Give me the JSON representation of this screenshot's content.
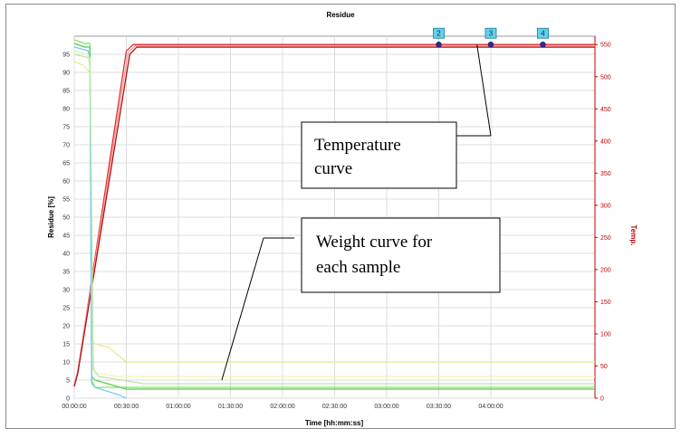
{
  "chart_data": {
    "type": "line",
    "title": "Residue",
    "xlabel": "Time [hh:mm:ss]",
    "ylabel": "Residue [%]",
    "y2label": "Temp.",
    "x_unit": "minutes",
    "xlim": [
      0,
      300
    ],
    "ylim": [
      0,
      100
    ],
    "y2lim": [
      0,
      563
    ],
    "x_ticks": [
      {
        "v": 0,
        "label": "00:00:00"
      },
      {
        "v": 30,
        "label": "00:30:00"
      },
      {
        "v": 60,
        "label": "01:00:00"
      },
      {
        "v": 90,
        "label": "01:30:00"
      },
      {
        "v": 120,
        "label": "02:00:00"
      },
      {
        "v": 150,
        "label": "02:30:00"
      },
      {
        "v": 180,
        "label": "03:00:00"
      },
      {
        "v": 210,
        "label": "03:30:00"
      },
      {
        "v": 240,
        "label": "04:00:00"
      }
    ],
    "y_ticks": [
      0,
      5,
      10,
      15,
      20,
      25,
      30,
      35,
      40,
      45,
      50,
      55,
      60,
      65,
      70,
      75,
      80,
      85,
      90,
      95
    ],
    "y2_ticks": [
      0,
      50,
      100,
      150,
      200,
      250,
      300,
      350,
      400,
      450,
      500,
      550
    ],
    "grid": true,
    "series": [
      {
        "axis": "y2",
        "color": "#e03030",
        "x": [
          0,
          2,
          30,
          34,
          300
        ],
        "y": [
          20,
          40,
          540,
          550,
          550
        ]
      },
      {
        "axis": "y2",
        "color": "#ff9b9b",
        "x": [
          0,
          2,
          31,
          35,
          300
        ],
        "y": [
          22,
          42,
          538,
          548,
          548
        ]
      },
      {
        "axis": "y2",
        "color": "#b01010",
        "x": [
          0,
          2,
          32,
          36,
          300
        ],
        "y": [
          18,
          38,
          535,
          546,
          546
        ]
      },
      {
        "axis": "y",
        "color": "#8ce060",
        "x": [
          0,
          6,
          9,
          10,
          12,
          20,
          300
        ],
        "y": [
          99,
          98,
          98,
          5,
          3,
          3,
          3
        ]
      },
      {
        "axis": "y",
        "color": "#4ccf4c",
        "x": [
          0,
          6,
          9,
          10,
          12,
          30,
          300
        ],
        "y": [
          98,
          97,
          97,
          6,
          5,
          2.5,
          2.5
        ]
      },
      {
        "axis": "y",
        "color": "#e8e88a",
        "x": [
          0,
          5,
          9,
          10,
          12,
          20,
          30,
          300
        ],
        "y": [
          93,
          92,
          90,
          16,
          15,
          14,
          10,
          10
        ]
      },
      {
        "axis": "y",
        "color": "#f2f2b0",
        "x": [
          0,
          7,
          9,
          10,
          12,
          25,
          300
        ],
        "y": [
          96,
          95,
          92,
          12,
          7,
          6,
          6
        ]
      },
      {
        "axis": "y",
        "color": "#6ec8f0",
        "x": [
          0,
          8,
          9,
          10,
          12,
          25,
          30
        ],
        "y": [
          97,
          96,
          94,
          4,
          3,
          1,
          0
        ]
      },
      {
        "axis": "y",
        "color": "#b6e6a6",
        "x": [
          0,
          9,
          11,
          14,
          40,
          300
        ],
        "y": [
          95,
          94,
          8,
          6,
          4,
          4
        ]
      }
    ],
    "markers": [
      {
        "label": "2",
        "x": 210,
        "y2": 550
      },
      {
        "label": "3",
        "x": 240,
        "y2": 550
      },
      {
        "label": "4",
        "x": 270,
        "y2": 550
      }
    ],
    "annotations": [
      {
        "lines": [
          "Temperature",
          "curve"
        ],
        "target_x": 232,
        "target_y2": 550
      },
      {
        "lines": [
          "Weight curve for",
          "each sample"
        ],
        "target_x": 85,
        "target_y": 4
      }
    ]
  }
}
